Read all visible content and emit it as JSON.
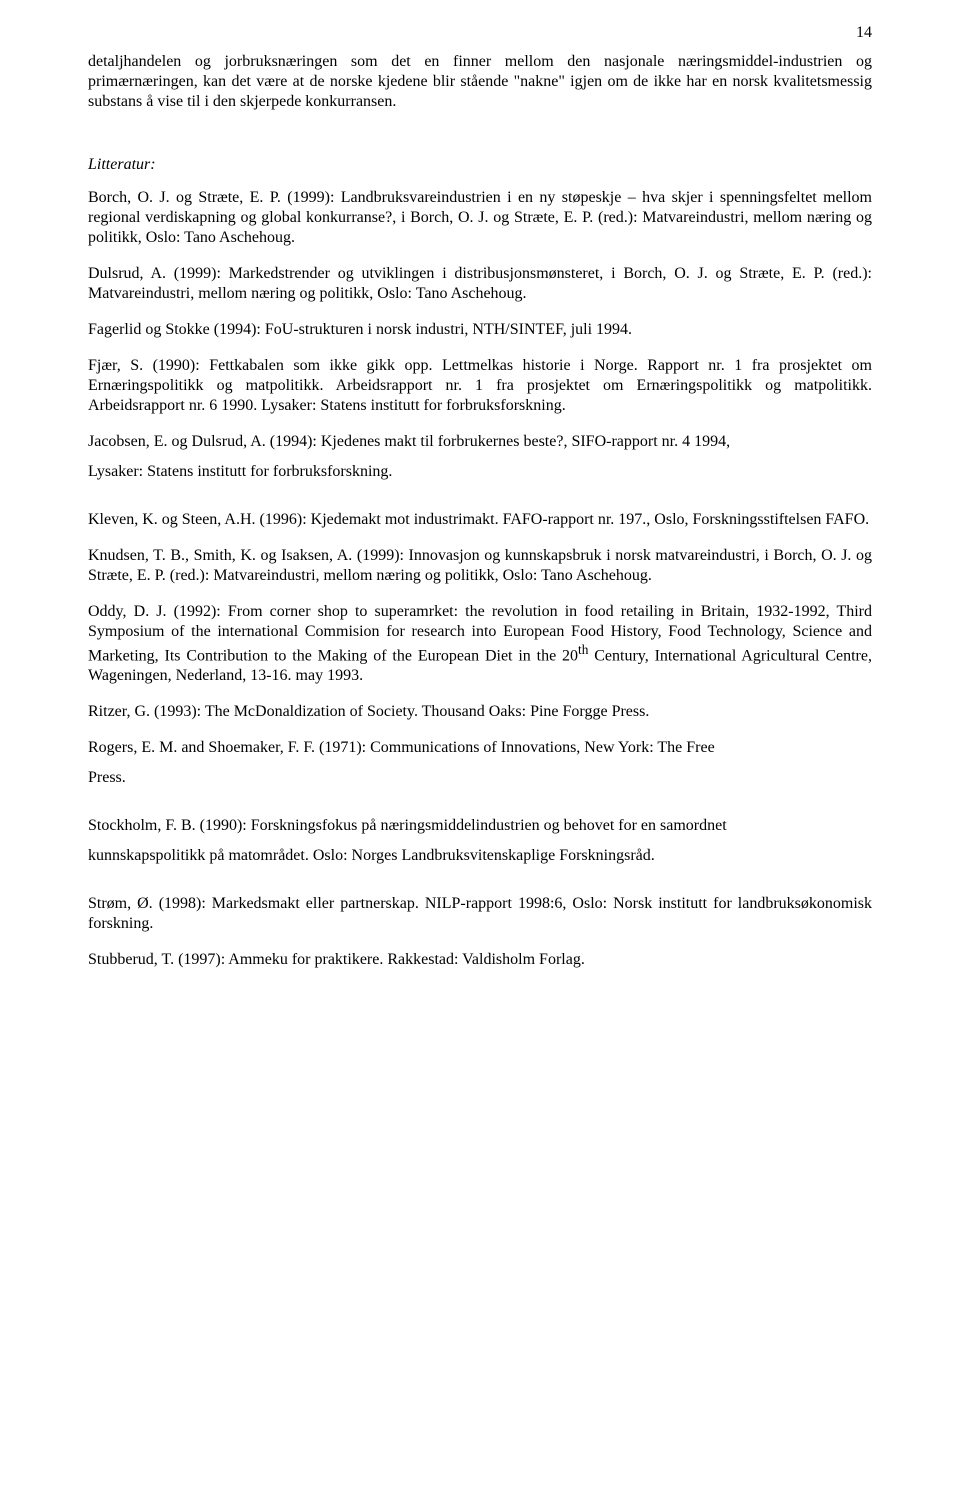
{
  "pageNumber": "14",
  "intro": "detaljhandelen og jorbruksnæringen som det en finner mellom den nasjonale næringsmiddel-industrien og primærnæringen, kan det være at de norske kjedene blir stående \"nakne\" igjen om de ikke har en norsk kvalitetsmessig substans å vise til i den skjerpede konkurransen.",
  "litteraturHeading": "Litteratur:",
  "refs": {
    "borch": "Borch, O. J. og Stræte, E. P. (1999): Landbruksvareindustrien i en ny støpeskje – hva skjer i spenningsfeltet mellom regional verdiskapning og global konkurranse?, i Borch, O. J. og Stræte, E. P. (red.): Matvareindustri, mellom næring og politikk, Oslo: Tano Aschehoug.",
    "dulsrud": "Dulsrud, A. (1999): Markedstrender og utviklingen i distribusjonsmønsteret, i Borch, O. J. og Stræte, E. P. (red.): Matvareindustri, mellom næring og politikk, Oslo: Tano Aschehoug.",
    "fagerlid": "Fagerlid  og Stokke (1994): FoU-strukturen i norsk industri, NTH/SINTEF, juli 1994.",
    "fjaer": "Fjær, S. (1990): Fettkabalen som ikke gikk opp. Lettmelkas historie i Norge. Rapport nr. 1 fra prosjektet om Ernæringspolitikk og matpolitikk. Arbeidsrapport nr. 1 fra prosjektet om Ernæringspolitikk og matpolitikk. Arbeidsrapport nr. 6 1990. Lysaker: Statens institutt for forbruksforskning.",
    "jacobsen": "Jacobsen, E. og Dulsrud, A. (1994): Kjedenes makt til forbrukernes beste?, SIFO-rapport nr. 4 1994,",
    "lysaker": "Lysaker: Statens institutt for forbruksforskning.",
    "kleven": "Kleven, K. og Steen, A.H. (1996): Kjedemakt mot industrimakt. FAFO-rapport nr. 197., Oslo, Forskningsstiftelsen FAFO.",
    "knudsen": "Knudsen, T. B., Smith, K. og Isaksen, A. (1999): Innovasjon og kunnskapsbruk i norsk matvareindustri, i Borch, O. J. og Stræte, E. P. (red.): Matvareindustri, mellom næring og politikk, Oslo: Tano Aschehoug.",
    "oddy_html": "Oddy, D. J. (1992): From corner shop to superamrket: the revolution in food retailing in Britain, 1932-1992, Third Symposium of the international Commision for research into European Food History, Food Technology, Science and Marketing, Its Contribution to the Making of the European Diet in the 20<sup>th</sup> Century, International Agricultural Centre, Wageningen, Nederland, 13-16. may 1993.",
    "ritzer": "Ritzer, G. (1993): The McDonaldization of Society. Thousand Oaks: Pine Forgge Press.",
    "rogers": "Rogers, E. M. and Shoemaker, F. F. (1971): Communications of Innovations, New York: The Free",
    "press": "Press.",
    "stockholm": "Stockholm, F. B. (1990): Forskningsfokus på næringsmiddelindustrien og behovet for en samordnet",
    "kunnskapspolitikk": "kunnskapspolitikk på matområdet. Oslo: Norges Landbruksvitenskaplige Forskningsråd.",
    "strom": "Strøm, Ø. (1998): Markedsmakt eller partnerskap. NILP-rapport 1998:6, Oslo: Norsk institutt for landbruksøkonomisk forskning.",
    "stubberud": "Stubberud, T. (1997): Ammeku for praktikere. Rakkestad: Valdisholm Forlag."
  }
}
